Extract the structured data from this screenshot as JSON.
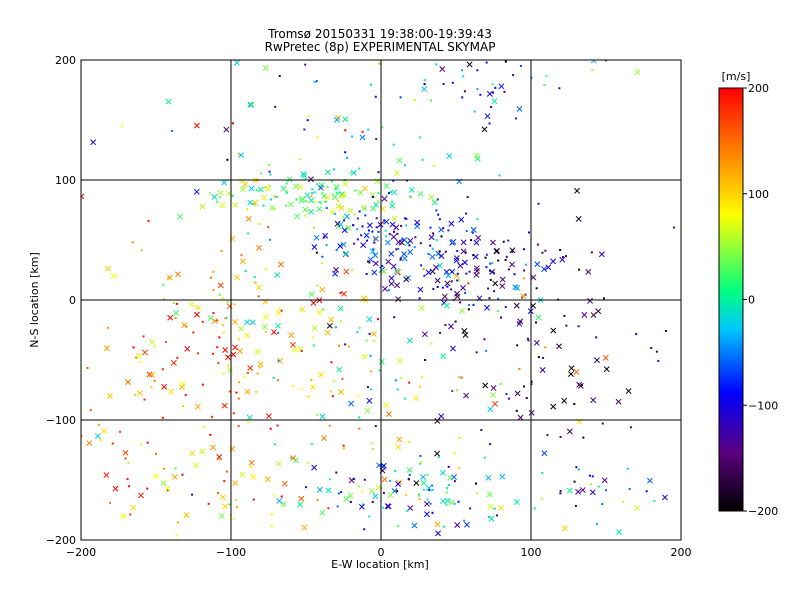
{
  "chart_data": {
    "type": "scatter",
    "title": "Tromsø 20150331 19:38:00-19:39:43",
    "subtitle": "RwPretec (8p) EXPERIMENTAL SKYMAP",
    "xlabel": "E-W location [km]",
    "ylabel": "N-S location [km]",
    "xlim": [
      -200,
      200
    ],
    "ylim": [
      -200,
      200
    ],
    "xticks": [
      -200,
      -100,
      0,
      100,
      200
    ],
    "yticks": [
      -200,
      -100,
      0,
      100,
      200
    ],
    "grid": true,
    "colorbar": {
      "label": "[m/s]",
      "range": [
        -200,
        200
      ],
      "ticks": [
        200,
        100,
        0,
        -100,
        -200
      ],
      "colormap": [
        "#000000",
        "#5a0080",
        "#0000ff",
        "#00c8ff",
        "#00ff80",
        "#ffff00",
        "#ff8000",
        "#ff0000"
      ]
    },
    "markers": [
      "cross",
      "dot"
    ],
    "clusters": [
      {
        "x": -45,
        "y": 85,
        "sx": 35,
        "sy": 12,
        "v": 25,
        "sv": 40,
        "n": 140
      },
      {
        "x": 10,
        "y": 50,
        "sx": 25,
        "sy": 15,
        "v": -90,
        "sv": 40,
        "n": 110
      },
      {
        "x": 60,
        "y": 25,
        "sx": 35,
        "sy": 20,
        "v": -130,
        "sv": 50,
        "n": 120
      },
      {
        "x": 110,
        "y": -40,
        "sx": 45,
        "sy": 45,
        "v": -170,
        "sv": 40,
        "n": 90
      },
      {
        "x": -80,
        "y": -20,
        "sx": 50,
        "sy": 40,
        "v": 110,
        "sv": 60,
        "n": 110
      },
      {
        "x": -150,
        "y": -80,
        "sx": 40,
        "sy": 60,
        "v": 160,
        "sv": 50,
        "n": 90
      },
      {
        "x": 20,
        "y": -160,
        "sx": 35,
        "sy": 15,
        "v": -40,
        "sv": 90,
        "n": 110
      },
      {
        "x": 70,
        "y": 180,
        "sx": 15,
        "sy": 15,
        "v": -60,
        "sv": 60,
        "n": 30
      },
      {
        "x": 0,
        "y": -40,
        "sx": 60,
        "sy": 40,
        "v": 40,
        "sv": 90,
        "n": 110
      },
      {
        "x": 140,
        "y": -160,
        "sx": 25,
        "sy": 15,
        "v": -60,
        "sv": 70,
        "n": 30
      },
      {
        "x": 0,
        "y": 150,
        "sx": 90,
        "sy": 40,
        "v": 0,
        "sv": 110,
        "n": 90
      },
      {
        "x": -100,
        "y": -150,
        "sx": 45,
        "sy": 30,
        "v": 120,
        "sv": 60,
        "n": 70
      }
    ]
  }
}
